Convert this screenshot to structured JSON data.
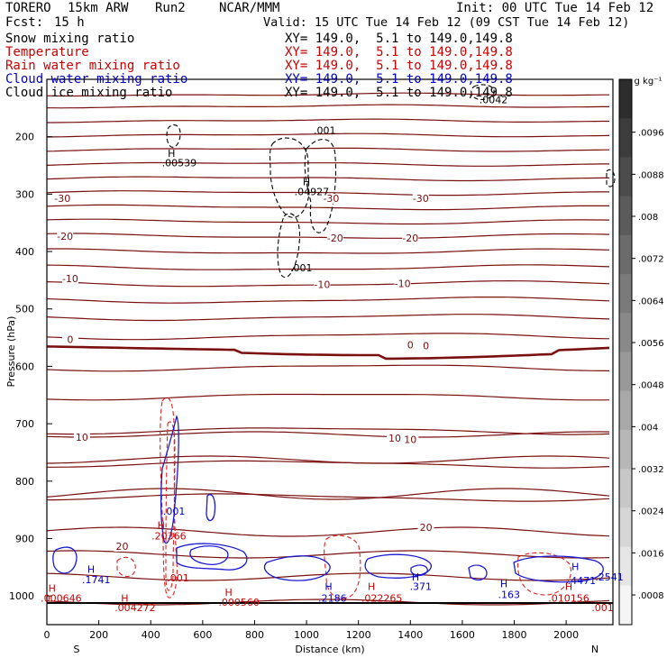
{
  "header": {
    "model": "TORERO",
    "grid": "15km ARW",
    "run": "Run2",
    "org": "NCAR/MMM",
    "init": "Init: 00 UTC Tue 14 Feb 12",
    "fcst_label": "Fcst:",
    "fcst_value": "15 h",
    "valid": "Valid: 15 UTC Tue 14 Feb 12 (09 CST Tue 14 Feb 12)"
  },
  "fields": [
    {
      "name": "Snow mixing ratio",
      "xy": "XY= 149.0,  5.1 to 149.0,149.8",
      "color": "#000000"
    },
    {
      "name": "Temperature",
      "xy": "XY= 149.0,  5.1 to 149.0,149.8",
      "color": "#cc0000"
    },
    {
      "name": "Rain water mixing ratio",
      "xy": "XY= 149.0,  5.1 to 149.0,149.8",
      "color": "#cc0000"
    },
    {
      "name": "Cloud water mixing ratio",
      "xy": "XY= 149.0,  5.1 to 149.0,149.8",
      "color": "#0000cc"
    },
    {
      "name": "Cloud ice mixing ratio",
      "xy": "XY= 149.0,  5.1 to 149.0,149.8",
      "color": "#000000"
    }
  ],
  "colorbar": {
    "unit": "g kg⁻¹",
    "ticks": [
      ".0096",
      ".0088",
      ".008",
      ".0072",
      ".0064",
      ".0056",
      ".0048",
      ".004",
      ".0032",
      ".0024",
      ".0016",
      ".0008"
    ]
  },
  "chart_data": {
    "type": "cross-section contour",
    "xlabel": "Distance (km)",
    "ylabel": "Pressure (hPa)",
    "xlim": [
      0,
      2180
    ],
    "ylim": [
      1050,
      100
    ],
    "x_ticks": [
      0,
      200,
      400,
      600,
      800,
      1000,
      1200,
      1400,
      1600,
      1800,
      2000
    ],
    "y_ticks": [
      200,
      300,
      400,
      500,
      600,
      700,
      800,
      900,
      1000
    ],
    "left_end": "S",
    "right_end": "N",
    "temperature_contour_labels": [
      {
        "value": "-30",
        "x": 60,
        "p": 312
      },
      {
        "value": "-30",
        "x": 1095,
        "p": 312
      },
      {
        "value": "-30",
        "x": 1440,
        "p": 312
      },
      {
        "value": "-20",
        "x": 70,
        "p": 378
      },
      {
        "value": "-20",
        "x": 1110,
        "p": 381
      },
      {
        "value": "-20",
        "x": 1400,
        "p": 381
      },
      {
        "value": "-10",
        "x": 90,
        "p": 452
      },
      {
        "value": "-10",
        "x": 1060,
        "p": 462
      },
      {
        "value": "-10",
        "x": 1370,
        "p": 460
      },
      {
        "value": "0",
        "x": 90,
        "p": 558
      },
      {
        "value": "0",
        "x": 1400,
        "p": 567
      },
      {
        "value": "0",
        "x": 1460,
        "p": 569
      },
      {
        "value": "10",
        "x": 135,
        "p": 728
      },
      {
        "value": "10",
        "x": 1340,
        "p": 730
      },
      {
        "value": "10",
        "x": 1400,
        "p": 732
      },
      {
        "value": "20",
        "x": 290,
        "p": 918
      },
      {
        "value": "20",
        "x": 1460,
        "p": 885
      }
    ],
    "annotations": [
      {
        "text": "H",
        "x": 480,
        "p": 230,
        "color": "#000000"
      },
      {
        "text": ".00539",
        "x": 510,
        "p": 247,
        "color": "#000000"
      },
      {
        "text": ".001",
        "x": 1070,
        "p": 190,
        "color": "#000000"
      },
      {
        "text": "H",
        "x": 1000,
        "p": 280,
        "color": "#000000"
      },
      {
        "text": ".04927",
        "x": 1020,
        "p": 297,
        "color": "#000000"
      },
      {
        "text": ".001",
        "x": 980,
        "p": 430,
        "color": "#000000"
      },
      {
        "text": ".0042",
        "x": 1720,
        "p": 137,
        "color": "#000000"
      },
      {
        "text": ".001",
        "x": 490,
        "p": 854,
        "color": "#0000cc"
      },
      {
        "text": "H",
        "x": 440,
        "p": 878,
        "color": "#cc0000"
      },
      {
        "text": ".20366",
        "x": 470,
        "p": 897,
        "color": "#cc0000"
      },
      {
        "text": "H",
        "x": 170,
        "p": 955,
        "color": "#0000cc"
      },
      {
        "text": ".1741",
        "x": 190,
        "p": 973,
        "color": "#0000cc"
      },
      {
        "text": "H",
        "x": 1085,
        "p": 985,
        "color": "#0000cc"
      },
      {
        "text": ".2186",
        "x": 1100,
        "p": 1005,
        "color": "#0000cc"
      },
      {
        "text": "H",
        "x": 1420,
        "p": 968,
        "color": "#0000cc"
      },
      {
        "text": ".371",
        "x": 1440,
        "p": 985,
        "color": "#0000cc"
      },
      {
        "text": "H",
        "x": 1760,
        "p": 980,
        "color": "#0000cc"
      },
      {
        "text": ".163",
        "x": 1780,
        "p": 999,
        "color": "#0000cc"
      },
      {
        "text": "H",
        "x": 2035,
        "p": 950,
        "color": "#0000cc"
      },
      {
        "text": ".4471",
        "x": 2060,
        "p": 975,
        "color": "#0000cc"
      },
      {
        "text": ".2541",
        "x": 2270,
        "p": 968,
        "color": "#0000cc"
      },
      {
        "text": ".001",
        "x": 505,
        "p": 970,
        "color": "#cc0000"
      },
      {
        "text": "H",
        "x": 20,
        "p": 988,
        "color": "#cc0000"
      },
      {
        "text": ".000646",
        "x": 55,
        "p": 1005,
        "color": "#cc0000"
      },
      {
        "text": "H",
        "x": 300,
        "p": 1005,
        "color": "#cc0000"
      },
      {
        "text": ".004272",
        "x": 340,
        "p": 1022,
        "color": "#cc0000"
      },
      {
        "text": "H",
        "x": 700,
        "p": 995,
        "color": "#cc0000"
      },
      {
        "text": ".000560",
        "x": 740,
        "p": 1012,
        "color": "#cc0000"
      },
      {
        "text": "H",
        "x": 1250,
        "p": 985,
        "color": "#cc0000"
      },
      {
        "text": ".022265",
        "x": 1290,
        "p": 1005,
        "color": "#cc0000"
      },
      {
        "text": "H",
        "x": 2010,
        "p": 985,
        "color": "#cc0000"
      },
      {
        "text": ".010156",
        "x": 2010,
        "p": 1005,
        "color": "#cc0000"
      },
      {
        "text": ".001",
        "x": 2140,
        "p": 1022,
        "color": "#cc0000"
      }
    ]
  }
}
